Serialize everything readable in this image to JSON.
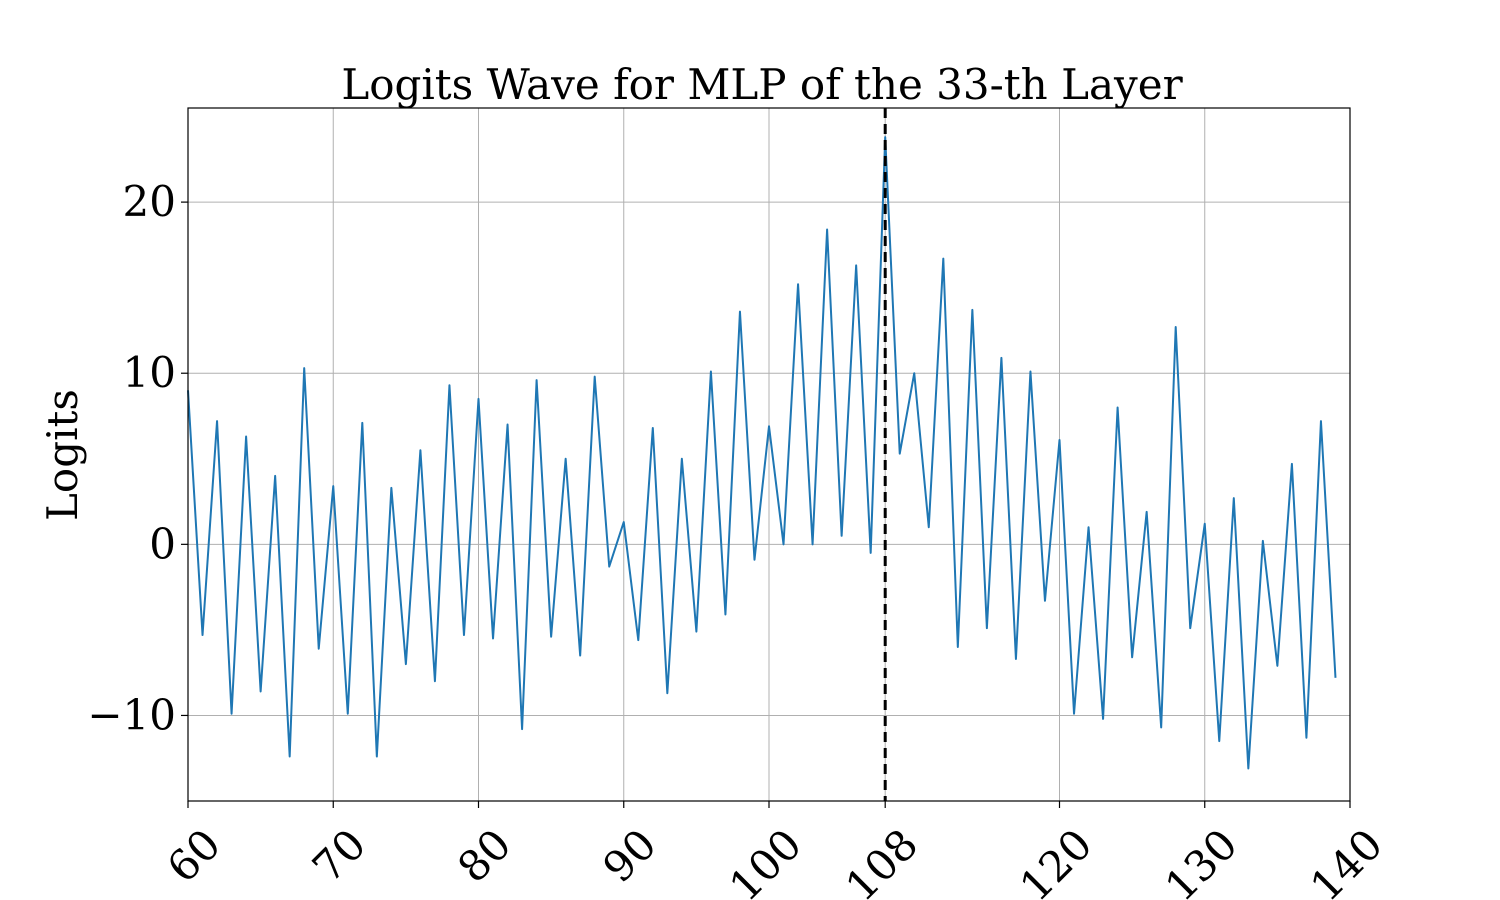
{
  "chart_data": {
    "type": "line",
    "title": "Logits Wave for MLP of the 33-th Layer",
    "xlabel": "",
    "ylabel": "Logits",
    "xlim": [
      60,
      140
    ],
    "ylim": [
      -15,
      25.5
    ],
    "xticks": [
      60,
      70,
      80,
      90,
      100,
      108,
      120,
      130,
      140
    ],
    "yticks": [
      -10,
      0,
      10,
      20
    ],
    "ytick_labels": [
      "−10",
      "0",
      "10",
      "20"
    ],
    "grid": true,
    "vertical_marker": {
      "x": 108,
      "style": "dashed",
      "color": "#000000"
    },
    "series": [
      {
        "color": "#1f77b4",
        "x": [
          60,
          61,
          62,
          63,
          64,
          65,
          66,
          67,
          68,
          69,
          70,
          71,
          72,
          73,
          74,
          75,
          76,
          77,
          78,
          79,
          80,
          81,
          82,
          83,
          84,
          85,
          86,
          87,
          88,
          89,
          90,
          91,
          92,
          93,
          94,
          95,
          96,
          97,
          98,
          99,
          100,
          101,
          102,
          103,
          104,
          105,
          106,
          107,
          108,
          109,
          110,
          111,
          112,
          113,
          114,
          115,
          116,
          117,
          118,
          119,
          120,
          121,
          122,
          123,
          124,
          125,
          126,
          127,
          128,
          129,
          130,
          131,
          132,
          133,
          134,
          135,
          136,
          137,
          138,
          139
        ],
        "y": [
          9.0,
          -5.3,
          7.2,
          -9.9,
          6.3,
          -8.6,
          4.0,
          -12.4,
          10.3,
          -6.1,
          3.4,
          -9.9,
          7.1,
          -12.4,
          3.3,
          -7.0,
          5.5,
          -8.0,
          9.3,
          -5.3,
          8.5,
          -5.5,
          7.0,
          -10.8,
          9.6,
          -5.4,
          5.0,
          -6.5,
          9.8,
          -1.3,
          1.3,
          -5.6,
          6.8,
          -8.7,
          5.0,
          -5.1,
          10.1,
          -4.1,
          13.6,
          -0.9,
          6.9,
          0.0,
          15.2,
          0.0,
          18.4,
          0.5,
          16.3,
          -0.5,
          23.8,
          5.3,
          10.0,
          1.0,
          16.7,
          -6.0,
          13.7,
          -4.9,
          10.9,
          -6.7,
          10.1,
          -3.3,
          6.1,
          -9.9,
          1.0,
          -10.2,
          8.0,
          -6.6,
          1.9,
          -10.7,
          12.7,
          -4.9,
          1.2,
          -11.5,
          2.7,
          -13.1,
          0.2,
          -7.1,
          4.7,
          -11.3,
          7.2,
          -7.8
        ]
      }
    ]
  }
}
